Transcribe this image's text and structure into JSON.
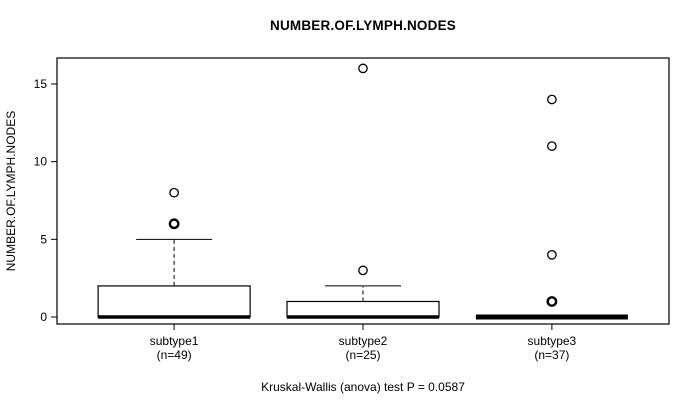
{
  "chart_data": {
    "type": "boxplot",
    "title": "NUMBER.OF.LYMPH.NODES",
    "ylabel": "NUMBER.OF.LYMPH.NODES",
    "xlabel": "",
    "annotation": "Kruskal-Wallis (anova) test P = 0.0587",
    "categories": [
      "subtype1",
      "subtype2",
      "subtype3"
    ],
    "category_sublabels": [
      "(n=49)",
      "(n=25)",
      "(n=37)"
    ],
    "yticks": [
      0,
      5,
      10,
      15
    ],
    "ylim": [
      -0.45,
      16.67
    ],
    "xlim": [
      0.38,
      3.62
    ],
    "grid": false,
    "colors": {
      "stroke": "#000000",
      "box_fill": "#ffffff",
      "background": "#ffffff"
    },
    "groups": [
      {
        "label": "subtype1",
        "n": 49,
        "median": 0,
        "q1": 0,
        "q3": 2,
        "whisker_low": 0,
        "whisker_high": 5,
        "outliers": [
          6,
          8
        ],
        "bold_outliers": [
          6
        ]
      },
      {
        "label": "subtype2",
        "n": 25,
        "median": 0,
        "q1": 0,
        "q3": 1,
        "whisker_low": 0,
        "whisker_high": 2,
        "outliers": [
          3,
          16
        ],
        "bold_outliers": []
      },
      {
        "label": "subtype3",
        "n": 37,
        "median": 0,
        "q1": 0,
        "q3": 0,
        "whisker_low": 0,
        "whisker_high": 0,
        "outliers": [
          1,
          4,
          11,
          14
        ],
        "bold_outliers": [
          1
        ]
      }
    ]
  }
}
